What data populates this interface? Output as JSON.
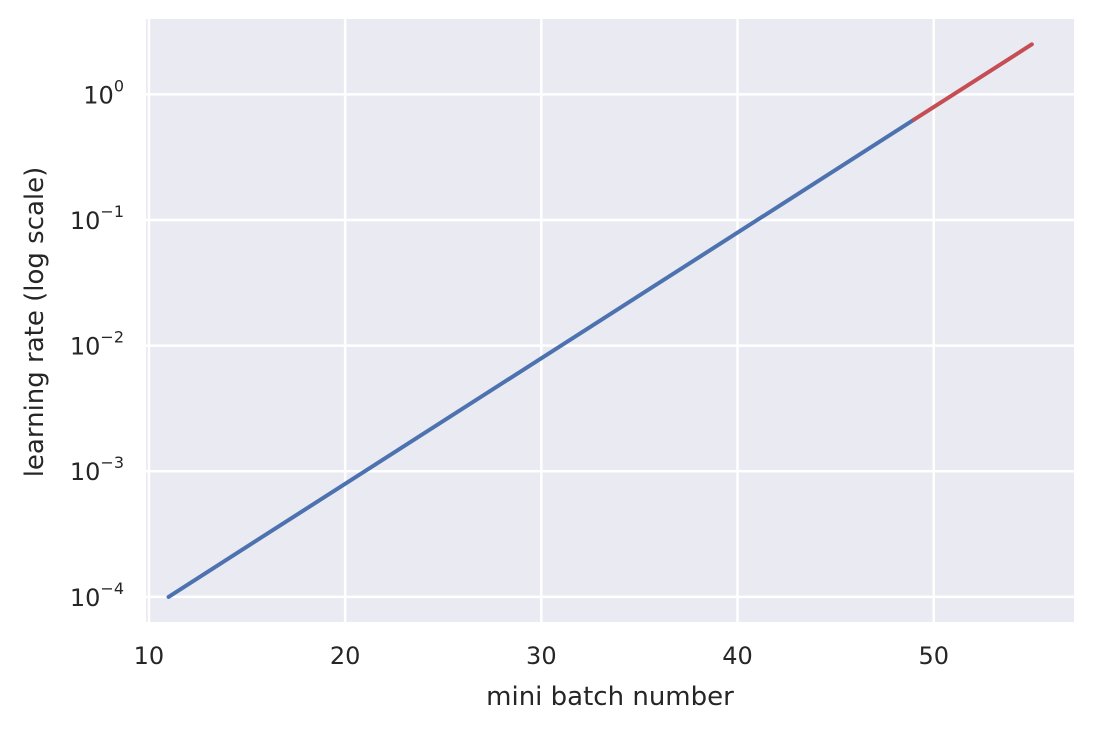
{
  "chart_data": {
    "type": "line",
    "title": "",
    "xlabel": "mini batch number",
    "ylabel": "learning rate (log scale)",
    "xlim": [
      9.85,
      57.15
    ],
    "ylim": [
      6.31e-05,
      3.98
    ],
    "yscale": "log",
    "grid": true,
    "background": "#eaeaf2",
    "grid_color": "#ffffff",
    "x_ticks": [
      {
        "value": 10,
        "label": "10"
      },
      {
        "value": 20,
        "label": "20"
      },
      {
        "value": 30,
        "label": "30"
      },
      {
        "value": 40,
        "label": "40"
      },
      {
        "value": 50,
        "label": "50"
      }
    ],
    "y_ticks": [
      {
        "value": 0.0001,
        "base": "10",
        "exp": "−4"
      },
      {
        "value": 0.001,
        "base": "10",
        "exp": "−3"
      },
      {
        "value": 0.01,
        "base": "10",
        "exp": "−2"
      },
      {
        "value": 0.1,
        "base": "10",
        "exp": "−1"
      },
      {
        "value": 1,
        "base": "10",
        "exp": "0"
      }
    ],
    "series": [
      {
        "color": "#4c72b0",
        "x": [
          11,
          49
        ],
        "y": [
          0.0001,
          0.63
        ]
      },
      {
        "color": "#c44e52",
        "x": [
          49,
          55
        ],
        "y": [
          0.63,
          2.5
        ]
      }
    ]
  }
}
